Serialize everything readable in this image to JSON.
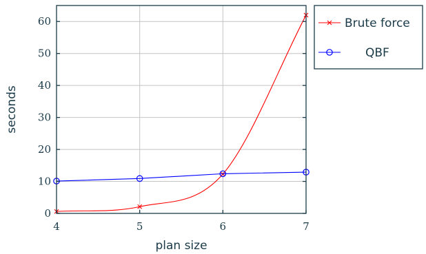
{
  "chart_data": {
    "type": "line",
    "xlabel": "plan size",
    "ylabel": "seconds",
    "x": [
      4,
      5,
      6,
      7
    ],
    "xlim": [
      4,
      7
    ],
    "ylim": [
      0,
      65
    ],
    "xticks": [
      4,
      5,
      6,
      7
    ],
    "yticks": [
      0,
      10,
      20,
      30,
      40,
      50,
      60
    ],
    "grid": true,
    "legend_position": "outside-top-right",
    "series": [
      {
        "name": "Brute force",
        "marker": "x",
        "color": "#ff0000",
        "curve": "smooth",
        "values": [
          0.6,
          2.1,
          12.3,
          62
        ]
      },
      {
        "name": "QBF",
        "marker": "circle",
        "color": "#0000ff",
        "curve": "straight",
        "values": [
          10.1,
          10.9,
          12.4,
          12.9
        ]
      }
    ]
  }
}
